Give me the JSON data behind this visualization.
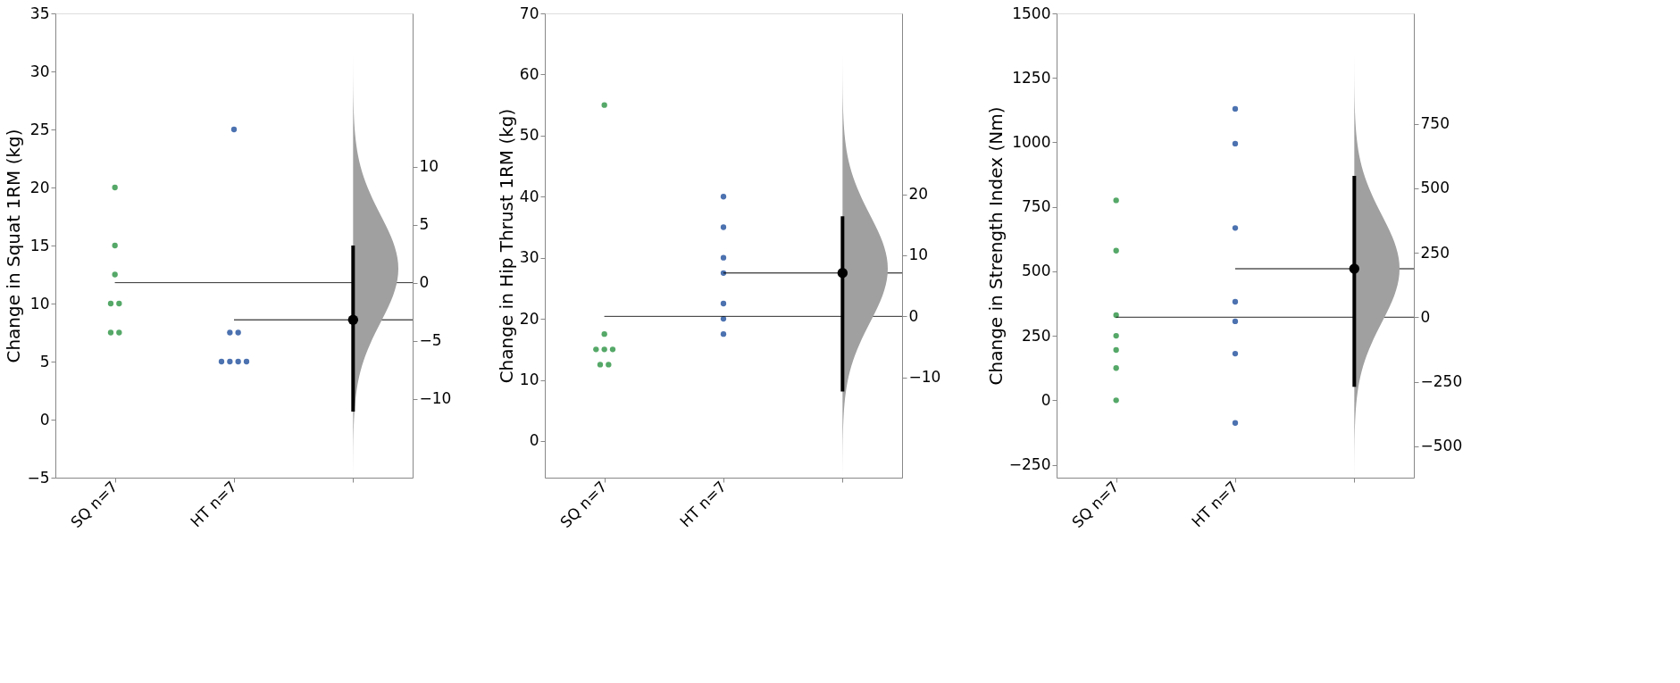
{
  "chart_data": [
    {
      "type": "scatter",
      "ylabel": "Change in Squat 1RM (kg)",
      "categories": [
        "SQ n=7",
        "HT n=7",
        null
      ],
      "ylim": [
        -5,
        35
      ],
      "yticks": [
        -5,
        0,
        5,
        10,
        15,
        20,
        25,
        30,
        35
      ],
      "y2lim": [
        -16.8,
        23.2
      ],
      "y2ticks": [
        -10,
        -5,
        0,
        5,
        10
      ],
      "grid": false,
      "series": [
        {
          "color": "#55a868",
          "x": [
            "SQ n=7",
            "SQ n=7",
            "SQ n=7",
            "SQ n=7",
            "SQ n=7",
            "SQ n=7",
            "SQ n=7"
          ],
          "values": [
            20,
            15,
            12.5,
            10,
            10,
            7.5,
            7.5
          ]
        },
        {
          "color": "#4c72b0",
          "x": [
            "HT n=7",
            "HT n=7",
            "HT n=7",
            "HT n=7",
            "HT n=7",
            "HT n=7",
            "HT n=7"
          ],
          "values": [
            25,
            7.5,
            7.5,
            5,
            5,
            5,
            5
          ]
        },
        {
          "axis": "y2",
          "color": "#000000",
          "values": [
            null,
            null,
            -3.2
          ],
          "errors": [
            null,
            null,
            [
              -11.1,
              3.2
            ]
          ]
        }
      ],
      "ref_lines": [
        {
          "axis": "y2",
          "value": 0,
          "color": "#000000"
        },
        {
          "axis": "y2",
          "value": -3.2,
          "color": "#000000"
        }
      ]
    },
    {
      "type": "scatter",
      "ylabel": "Change in Hip Thrust 1RM (kg)",
      "categories": [
        "SQ n=7",
        "HT n=7",
        null
      ],
      "ylim": [
        -6,
        70
      ],
      "yticks": [
        0,
        10,
        20,
        30,
        40,
        50,
        60,
        70
      ],
      "y2lim": [
        -26.4,
        49.6
      ],
      "y2ticks": [
        -10,
        0,
        10,
        20
      ],
      "grid": false,
      "series": [
        {
          "color": "#55a868",
          "x": [
            "SQ n=7",
            "SQ n=7",
            "SQ n=7",
            "SQ n=7",
            "SQ n=7",
            "SQ n=7",
            "SQ n=7"
          ],
          "values": [
            55,
            17.5,
            15,
            15,
            15,
            12.5,
            12.5
          ]
        },
        {
          "color": "#4c72b0",
          "x": [
            "HT n=7",
            "HT n=7",
            "HT n=7",
            "HT n=7",
            "HT n=7",
            "HT n=7",
            "HT n=7"
          ],
          "values": [
            40,
            35,
            30,
            27.5,
            22.5,
            20,
            17.5
          ]
        },
        {
          "axis": "y2",
          "color": "#000000",
          "values": [
            null,
            null,
            7.1
          ],
          "errors": [
            null,
            null,
            [
              -12.3,
              16.4
            ]
          ]
        }
      ],
      "ref_lines": [
        {
          "axis": "y2",
          "value": 0,
          "color": "#000000"
        },
        {
          "axis": "y2",
          "value": 7.1,
          "color": "#000000"
        }
      ]
    },
    {
      "type": "scatter",
      "ylabel": "Change in Strength Index (Nm)",
      "categories": [
        "SQ n=7",
        "HT n=7",
        null
      ],
      "ylim": [
        -300,
        1500
      ],
      "yticks": [
        -250,
        0,
        250,
        500,
        750,
        1000,
        1250,
        1500
      ],
      "y2lim": [
        -622,
        1178
      ],
      "y2ticks": [
        -500,
        -250,
        0,
        250,
        500,
        750
      ],
      "grid": false,
      "series": [
        {
          "color": "#55a868",
          "x": [
            "SQ n=7",
            "SQ n=7",
            "SQ n=7",
            "SQ n=7",
            "SQ n=7",
            "SQ n=7",
            "SQ n=7"
          ],
          "values": [
            775,
            580,
            330,
            250,
            195,
            125,
            0
          ]
        },
        {
          "color": "#4c72b0",
          "x": [
            "HT n=7",
            "HT n=7",
            "HT n=7",
            "HT n=7",
            "HT n=7",
            "HT n=7",
            "HT n=7"
          ],
          "values": [
            1130,
            995,
            668,
            382,
            306,
            181,
            -88
          ]
        },
        {
          "axis": "y2",
          "color": "#000000",
          "values": [
            null,
            null,
            188
          ],
          "errors": [
            null,
            null,
            [
              -270,
              548
            ]
          ]
        }
      ],
      "ref_lines": [
        {
          "axis": "y2",
          "value": 0,
          "color": "#000000"
        },
        {
          "axis": "y2",
          "value": 188,
          "color": "#000000"
        }
      ]
    }
  ]
}
